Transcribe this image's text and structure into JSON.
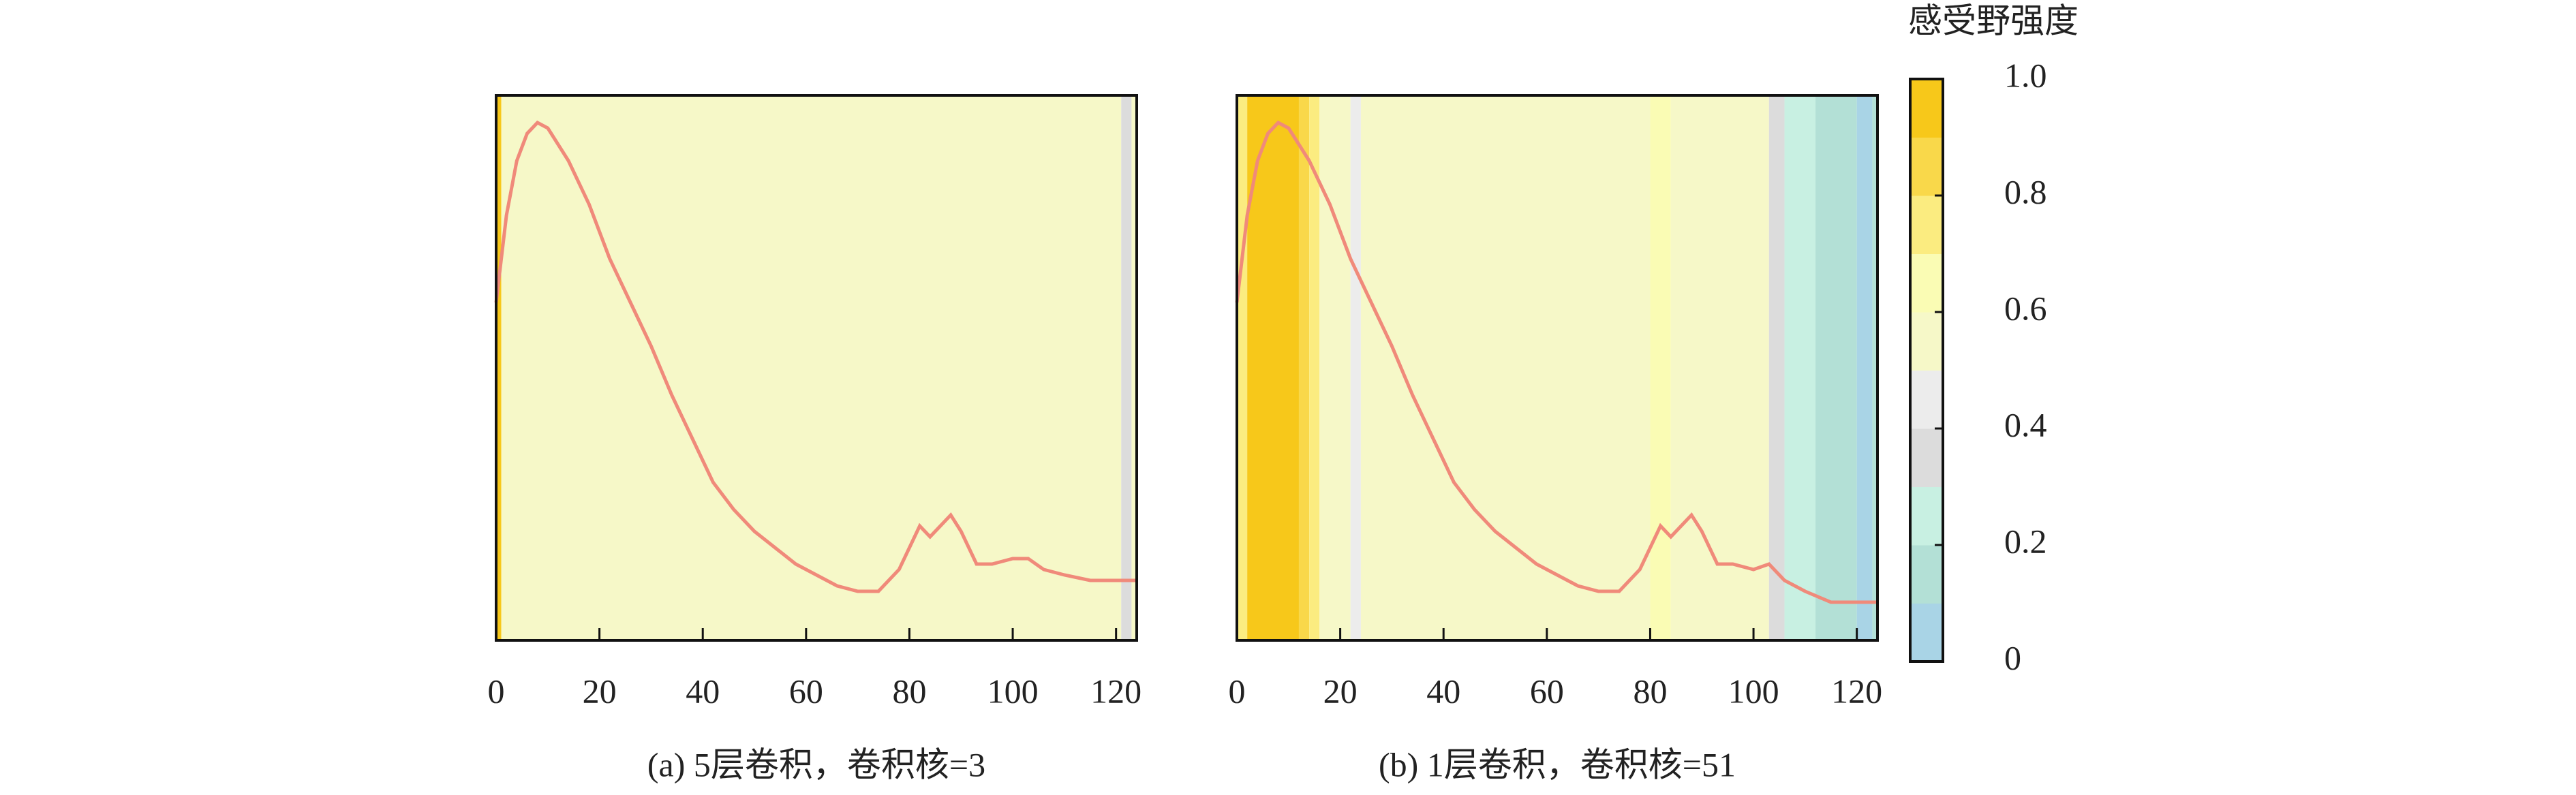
{
  "chart_data": [
    {
      "type": "line",
      "caption": "(a) 5层卷积，卷积核=3",
      "color": "#f08a7a",
      "x": [
        0,
        2,
        4,
        6,
        8,
        10,
        14,
        18,
        22,
        26,
        30,
        34,
        38,
        42,
        46,
        50,
        54,
        58,
        62,
        66,
        70,
        74,
        78,
        82,
        84,
        86,
        88,
        90,
        93,
        96,
        100,
        103,
        106,
        110,
        115,
        120,
        124
      ],
      "values": [
        0.62,
        0.78,
        0.88,
        0.93,
        0.95,
        0.94,
        0.88,
        0.8,
        0.7,
        0.62,
        0.54,
        0.45,
        0.37,
        0.29,
        0.24,
        0.2,
        0.17,
        0.14,
        0.12,
        0.1,
        0.09,
        0.09,
        0.13,
        0.21,
        0.19,
        0.21,
        0.23,
        0.2,
        0.14,
        0.14,
        0.15,
        0.15,
        0.13,
        0.12,
        0.11,
        0.11,
        0.11
      ],
      "bands": {
        "edges": [
          0,
          1,
          121,
          123,
          124
        ],
        "intensity": [
          0.95,
          0.55,
          0.35,
          0.55
        ]
      },
      "xlim": [
        0,
        124
      ],
      "ylim": [
        0,
        1
      ],
      "xticks": [
        0,
        20,
        40,
        60,
        80,
        100,
        120
      ]
    },
    {
      "type": "line",
      "caption": "(b) 1层卷积，卷积核=51",
      "color": "#f08a7a",
      "x": [
        0,
        2,
        4,
        6,
        8,
        10,
        14,
        18,
        22,
        26,
        30,
        34,
        38,
        42,
        46,
        50,
        54,
        58,
        62,
        66,
        70,
        74,
        78,
        82,
        84,
        86,
        88,
        90,
        93,
        96,
        100,
        103,
        106,
        110,
        115,
        120,
        124
      ],
      "values": [
        0.62,
        0.78,
        0.88,
        0.93,
        0.95,
        0.94,
        0.88,
        0.8,
        0.7,
        0.62,
        0.54,
        0.45,
        0.37,
        0.29,
        0.24,
        0.2,
        0.17,
        0.14,
        0.12,
        0.1,
        0.09,
        0.09,
        0.13,
        0.21,
        0.19,
        0.21,
        0.23,
        0.2,
        0.14,
        0.14,
        0.13,
        0.14,
        0.11,
        0.09,
        0.07,
        0.07,
        0.07
      ],
      "bands": {
        "edges": [
          0,
          2,
          12,
          14,
          16,
          22,
          24,
          80,
          84,
          103,
          106,
          112,
          120,
          123,
          124
        ],
        "intensity": [
          0.75,
          0.95,
          0.85,
          0.7,
          0.55,
          0.45,
          0.55,
          0.65,
          0.55,
          0.35,
          0.25,
          0.15,
          0.05,
          0.15
        ]
      },
      "xlim": [
        0,
        124
      ],
      "ylim": [
        0,
        1
      ],
      "xticks": [
        0,
        20,
        40,
        60,
        80,
        100,
        120
      ]
    },
    {
      "type": "colorbar",
      "title": "感受野强度",
      "colors": [
        "#a9d4e6",
        "#b3e0d6",
        "#c8f0e2",
        "#dcdcdc",
        "#ececec",
        "#f6f8c8",
        "#fafcb4",
        "#fbec80",
        "#f9d84a",
        "#f7c81a"
      ],
      "ylim": [
        0,
        1
      ],
      "yticks": [
        0,
        0.2,
        0.4,
        0.6,
        0.8,
        {
          "value": 1,
          "label": "1.0"
        }
      ]
    }
  ]
}
